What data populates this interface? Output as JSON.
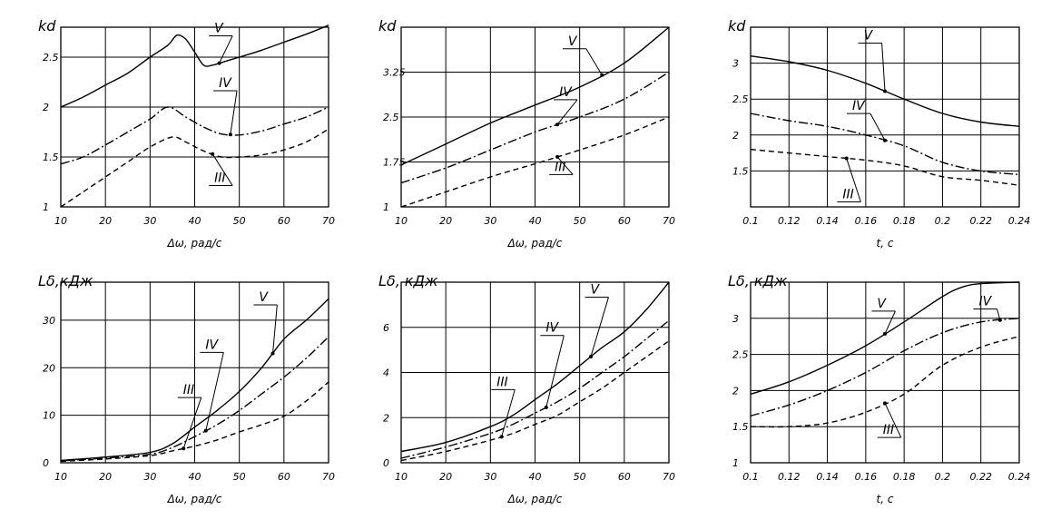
{
  "chart_data": [
    {
      "type": "line",
      "ylabel": "kd",
      "xlabel": "Δω, рад/с",
      "xlim": [
        10,
        70
      ],
      "ylim": [
        1,
        2.8
      ],
      "xticks": [
        10,
        20,
        30,
        40,
        50,
        60,
        70
      ],
      "xtick_labels": [
        "10",
        "20",
        "30",
        "40",
        "50",
        "60",
        "70"
      ],
      "yticks": [
        1,
        1.5,
        2,
        2.5
      ],
      "ytick_labels": [
        "1",
        "1.5",
        "2",
        "2.5"
      ],
      "grid": true,
      "series": [
        {
          "name": "V",
          "style": "solid",
          "x": [
            10,
            15,
            20,
            25,
            30,
            34,
            36,
            38,
            40,
            42,
            44,
            47,
            50,
            55,
            60,
            65,
            70
          ],
          "y": [
            2.0,
            2.1,
            2.22,
            2.34,
            2.5,
            2.62,
            2.72,
            2.68,
            2.55,
            2.42,
            2.42,
            2.46,
            2.5,
            2.57,
            2.65,
            2.73,
            2.82
          ]
        },
        {
          "name": "IV",
          "style": "dashdot",
          "x": [
            10,
            15,
            20,
            25,
            30,
            34,
            38,
            42,
            46,
            50,
            55,
            60,
            65,
            70
          ],
          "y": [
            1.43,
            1.5,
            1.62,
            1.75,
            1.88,
            2.0,
            1.9,
            1.8,
            1.73,
            1.72,
            1.76,
            1.83,
            1.9,
            2.0
          ]
        },
        {
          "name": "III",
          "style": "dashed",
          "x": [
            10,
            15,
            20,
            25,
            30,
            35,
            38,
            42,
            46,
            50,
            55,
            60,
            65,
            70
          ],
          "y": [
            1.0,
            1.15,
            1.3,
            1.45,
            1.6,
            1.7,
            1.65,
            1.56,
            1.5,
            1.5,
            1.52,
            1.57,
            1.65,
            1.78
          ]
        }
      ],
      "annotations": [
        {
          "text": "V",
          "x": 44,
          "y": 2.75
        },
        {
          "text": "IV",
          "x": 45,
          "y": 2.2
        },
        {
          "text": "III",
          "x": 44,
          "y": 1.25
        }
      ]
    },
    {
      "type": "line",
      "ylabel": "kd",
      "xlabel": "Δω, рад/с",
      "xlim": [
        10,
        70
      ],
      "ylim": [
        1,
        4
      ],
      "xticks": [
        10,
        20,
        30,
        40,
        50,
        60,
        70
      ],
      "xtick_labels": [
        "10",
        "20",
        "30",
        "40",
        "50",
        "60",
        "70"
      ],
      "yticks": [
        1,
        1.75,
        2.5,
        3.25
      ],
      "ytick_labels": [
        "1",
        "1.75",
        "2.5",
        "3.25"
      ],
      "grid": true,
      "series": [
        {
          "name": "V",
          "style": "solid",
          "x": [
            10,
            20,
            30,
            40,
            50,
            60,
            70
          ],
          "y": [
            1.7,
            2.05,
            2.4,
            2.7,
            3.0,
            3.4,
            4.0
          ]
        },
        {
          "name": "IV",
          "style": "dashdot",
          "x": [
            10,
            20,
            30,
            40,
            50,
            60,
            70
          ],
          "y": [
            1.4,
            1.65,
            1.95,
            2.25,
            2.5,
            2.8,
            3.25
          ]
        },
        {
          "name": "III",
          "style": "dashed",
          "x": [
            10,
            20,
            30,
            40,
            50,
            60,
            70
          ],
          "y": [
            1.0,
            1.25,
            1.5,
            1.72,
            1.95,
            2.2,
            2.5
          ]
        }
      ],
      "annotations": [
        {
          "text": "V",
          "x": 47,
          "y": 3.7
        },
        {
          "text": "IV",
          "x": 45,
          "y": 2.85
        },
        {
          "text": "III",
          "x": 44,
          "y": 1.6
        }
      ]
    },
    {
      "type": "line",
      "ylabel": "kd",
      "xlabel": "t, c",
      "xlim": [
        0.1,
        0.24
      ],
      "ylim": [
        1,
        3.5
      ],
      "xticks": [
        0.1,
        0.12,
        0.14,
        0.16,
        0.18,
        0.2,
        0.22,
        0.24
      ],
      "xtick_labels": [
        "0.1",
        "0.12",
        "0.14",
        "0.16",
        "0.18",
        "0.2",
        "0.22",
        "0.24"
      ],
      "yticks": [
        1.5,
        2,
        2.5,
        3
      ],
      "ytick_labels": [
        "1.5",
        "2",
        "2.5",
        "3"
      ],
      "grid": true,
      "series": [
        {
          "name": "V",
          "style": "solid",
          "x": [
            0.1,
            0.12,
            0.14,
            0.16,
            0.18,
            0.2,
            0.22,
            0.24
          ],
          "y": [
            3.1,
            3.02,
            2.9,
            2.72,
            2.5,
            2.3,
            2.18,
            2.12
          ]
        },
        {
          "name": "IV",
          "style": "dashdot",
          "x": [
            0.1,
            0.12,
            0.14,
            0.16,
            0.18,
            0.2,
            0.22,
            0.24
          ],
          "y": [
            2.3,
            2.2,
            2.12,
            2.0,
            1.85,
            1.62,
            1.5,
            1.45
          ]
        },
        {
          "name": "III",
          "style": "dashed",
          "x": [
            0.1,
            0.12,
            0.14,
            0.16,
            0.18,
            0.2,
            0.22,
            0.24
          ],
          "y": [
            1.8,
            1.75,
            1.7,
            1.65,
            1.57,
            1.42,
            1.37,
            1.3
          ]
        }
      ],
      "annotations": [
        {
          "text": "V",
          "x": 0.158,
          "y": 3.33
        },
        {
          "text": "IV",
          "x": 0.152,
          "y": 2.35
        },
        {
          "text": "III",
          "x": 0.147,
          "y": 1.12
        }
      ]
    },
    {
      "type": "line",
      "ylabel": "Lδ,кДж",
      "xlabel": "Δω, рад/с",
      "xlim": [
        10,
        70
      ],
      "ylim": [
        0,
        38
      ],
      "xticks": [
        10,
        20,
        30,
        40,
        50,
        60,
        70
      ],
      "xtick_labels": [
        "10",
        "20",
        "30",
        "40",
        "50",
        "60",
        "70"
      ],
      "yticks": [
        0,
        10,
        20,
        30
      ],
      "ytick_labels": [
        "0",
        "10",
        "20",
        "30"
      ],
      "grid": true,
      "series": [
        {
          "name": "V",
          "style": "solid",
          "x": [
            10,
            20,
            30,
            35,
            40,
            45,
            50,
            55,
            60,
            65,
            70
          ],
          "y": [
            0.5,
            1.2,
            2.2,
            4.0,
            7.5,
            11.0,
            15.0,
            20.0,
            26.0,
            30.0,
            34.5
          ]
        },
        {
          "name": "IV",
          "style": "dashdot",
          "x": [
            10,
            20,
            30,
            35,
            40,
            45,
            50,
            55,
            60,
            65,
            70
          ],
          "y": [
            0.4,
            1.0,
            1.8,
            3.2,
            5.5,
            8.0,
            11.0,
            14.5,
            18.0,
            22.0,
            26.5
          ]
        },
        {
          "name": "III",
          "style": "dashed",
          "x": [
            10,
            20,
            30,
            35,
            40,
            45,
            50,
            55,
            60,
            65,
            70
          ],
          "y": [
            0.3,
            0.8,
            1.5,
            2.5,
            3.5,
            4.8,
            6.5,
            8.0,
            9.8,
            13.0,
            17.0
          ]
        }
      ],
      "annotations": [
        {
          "text": "V",
          "x": 54,
          "y": 34.0
        },
        {
          "text": "IV",
          "x": 42,
          "y": 24.0
        },
        {
          "text": "III",
          "x": 37,
          "y": 14.5
        }
      ]
    },
    {
      "type": "line",
      "ylabel": "Lδ, кДж",
      "xlabel": "Δω, рад/с",
      "xlim": [
        10,
        70
      ],
      "ylim": [
        0,
        8
      ],
      "xticks": [
        10,
        20,
        30,
        40,
        50,
        60,
        70
      ],
      "xtick_labels": [
        "10",
        "20",
        "30",
        "40",
        "50",
        "60",
        "70"
      ],
      "yticks": [
        0,
        2,
        4,
        6
      ],
      "ytick_labels": [
        "0",
        "2",
        "4",
        "6"
      ],
      "grid": true,
      "series": [
        {
          "name": "V",
          "style": "solid",
          "x": [
            10,
            20,
            30,
            35,
            40,
            45,
            50,
            55,
            60,
            65,
            70
          ],
          "y": [
            0.5,
            0.9,
            1.6,
            2.1,
            2.8,
            3.5,
            4.3,
            5.1,
            5.8,
            6.8,
            8.0
          ]
        },
        {
          "name": "IV",
          "style": "dashdot",
          "x": [
            10,
            20,
            30,
            35,
            40,
            45,
            50,
            55,
            60,
            65,
            70
          ],
          "y": [
            0.2,
            0.7,
            1.3,
            1.7,
            2.2,
            2.7,
            3.3,
            4.0,
            4.7,
            5.5,
            6.3
          ]
        },
        {
          "name": "III",
          "style": "dashed",
          "x": [
            10,
            20,
            30,
            35,
            40,
            45,
            50,
            55,
            60,
            65,
            70
          ],
          "y": [
            0.1,
            0.5,
            1.0,
            1.3,
            1.7,
            2.1,
            2.7,
            3.3,
            4.0,
            4.7,
            5.4
          ]
        }
      ],
      "annotations": [
        {
          "text": "V",
          "x": 52,
          "y": 7.5
        },
        {
          "text": "IV",
          "x": 42,
          "y": 5.8
        },
        {
          "text": "III",
          "x": 31,
          "y": 3.4
        }
      ]
    },
    {
      "type": "line",
      "ylabel": "Lδ, кДж",
      "xlabel": "t, c",
      "xlim": [
        0.1,
        0.24
      ],
      "ylim": [
        1,
        3.5
      ],
      "xticks": [
        0.1,
        0.12,
        0.14,
        0.16,
        0.18,
        0.2,
        0.22,
        0.24
      ],
      "xtick_labels": [
        "0.1",
        "0.12",
        "0.14",
        "0.16",
        "0.18",
        "0.2",
        "0.22",
        "0.24"
      ],
      "yticks": [
        1,
        1.5,
        2,
        2.5,
        3
      ],
      "ytick_labels": [
        "1",
        "1.5",
        "2",
        "2.5",
        "3"
      ],
      "grid": true,
      "series": [
        {
          "name": "V",
          "style": "solid",
          "x": [
            0.1,
            0.12,
            0.14,
            0.16,
            0.18,
            0.2,
            0.21,
            0.22,
            0.24
          ],
          "y": [
            1.95,
            2.12,
            2.35,
            2.62,
            2.95,
            3.3,
            3.43,
            3.48,
            3.5
          ]
        },
        {
          "name": "IV",
          "style": "dashdot",
          "x": [
            0.1,
            0.12,
            0.14,
            0.16,
            0.18,
            0.2,
            0.22,
            0.24
          ],
          "y": [
            1.65,
            1.8,
            2.0,
            2.25,
            2.55,
            2.8,
            2.95,
            3.0
          ]
        },
        {
          "name": "III",
          "style": "dashed",
          "x": [
            0.1,
            0.12,
            0.14,
            0.16,
            0.18,
            0.2,
            0.22,
            0.24
          ],
          "y": [
            1.5,
            1.5,
            1.55,
            1.7,
            1.95,
            2.35,
            2.6,
            2.75
          ]
        }
      ],
      "annotations": [
        {
          "text": "V",
          "x": 0.165,
          "y": 3.15
        },
        {
          "text": "IV",
          "x": 0.218,
          "y": 3.18
        },
        {
          "text": "III",
          "x": 0.168,
          "y": 1.4
        }
      ]
    }
  ]
}
